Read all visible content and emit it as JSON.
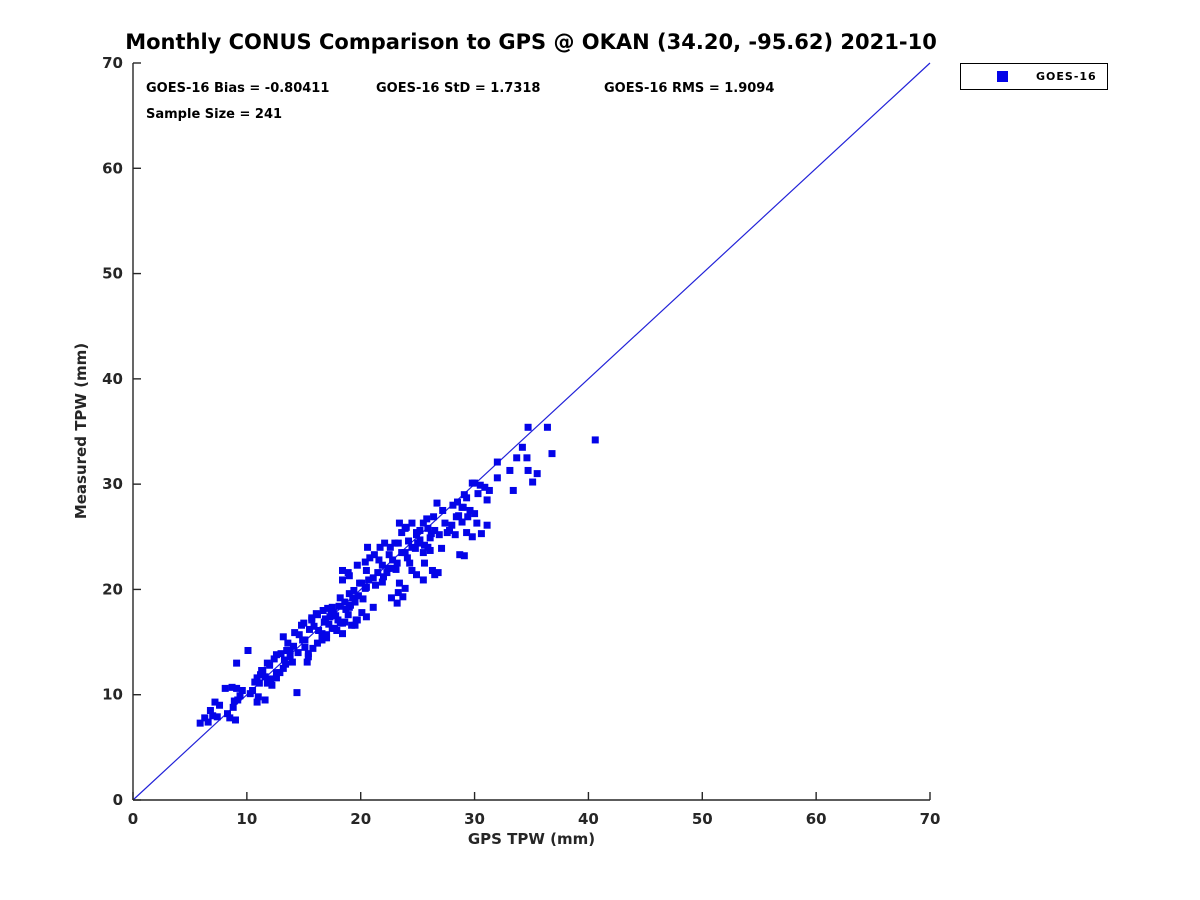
{
  "title": "Monthly CONUS Comparison to GPS @ OKAN (34.20, -95.62) 2021-10",
  "stats": {
    "bias": "GOES-16 Bias = -0.80411",
    "std": "GOES-16 StD = 1.7318",
    "rms": "GOES-16 RMS = 1.9094",
    "sample": "Sample Size = 241"
  },
  "legend": {
    "label": "GOES-16",
    "marker_color": "#0404e8"
  },
  "colors": {
    "marker": "#0404e8",
    "identity_line": "#2222d8",
    "axis": "#262626",
    "tick_label": "#262626",
    "text": "#000000"
  },
  "chart_data": {
    "type": "scatter",
    "title": "Monthly CONUS Comparison to GPS @ OKAN (34.20, -95.62) 2021-10",
    "xlabel": "GPS TPW (mm)",
    "ylabel": "Measured TPW (mm)",
    "xlim": [
      0,
      70
    ],
    "ylim": [
      0,
      70
    ],
    "xticks": [
      0,
      10,
      20,
      30,
      40,
      50,
      60,
      70
    ],
    "yticks": [
      0,
      10,
      20,
      30,
      40,
      50,
      60,
      70
    ],
    "grid": false,
    "legend_position": "outside-top-right",
    "reference_line": {
      "type": "identity",
      "from": [
        0,
        0
      ],
      "to": [
        70,
        70
      ]
    },
    "stats": {
      "bias": -0.80411,
      "std": 1.7318,
      "rms": 1.9094,
      "sample_size": 241
    },
    "series": [
      {
        "name": "GOES-16",
        "marker": "square",
        "marker_size_px": 7,
        "color": "#0404e8",
        "points": [
          [
            5.9,
            7.3
          ],
          [
            6.3,
            7.8
          ],
          [
            6.6,
            7.4
          ],
          [
            6.8,
            8.5
          ],
          [
            7.0,
            8.0
          ],
          [
            7.2,
            9.3
          ],
          [
            7.6,
            9.0
          ],
          [
            8.1,
            10.6
          ],
          [
            8.3,
            8.2
          ],
          [
            8.5,
            7.8
          ],
          [
            8.7,
            10.7
          ],
          [
            8.8,
            8.8
          ],
          [
            9.0,
            7.6
          ],
          [
            9.1,
            10.6
          ],
          [
            9.2,
            9.5
          ],
          [
            9.6,
            10.4
          ],
          [
            9.1,
            13.0
          ],
          [
            10.1,
            14.2
          ],
          [
            10.3,
            10.1
          ],
          [
            10.5,
            10.4
          ],
          [
            10.9,
            9.3
          ],
          [
            10.9,
            11.6
          ],
          [
            11.0,
            9.8
          ],
          [
            11.1,
            11.1
          ],
          [
            11.3,
            12.3
          ],
          [
            11.4,
            12.3
          ],
          [
            11.6,
            9.5
          ],
          [
            11.6,
            11.7
          ],
          [
            11.8,
            11.1
          ],
          [
            11.8,
            13.0
          ],
          [
            12.0,
            12.8
          ],
          [
            12.1,
            11.5
          ],
          [
            12.2,
            10.9
          ],
          [
            12.6,
            11.6
          ],
          [
            12.6,
            12.1
          ],
          [
            12.6,
            13.8
          ],
          [
            12.9,
            12.1
          ],
          [
            13.2,
            12.5
          ],
          [
            13.2,
            15.5
          ],
          [
            13.3,
            13.3
          ],
          [
            13.5,
            14.2
          ],
          [
            13.6,
            14.9
          ],
          [
            13.8,
            13.6
          ],
          [
            13.8,
            14.2
          ],
          [
            14.0,
            13.1
          ],
          [
            14.2,
            15.9
          ],
          [
            14.4,
            10.2
          ],
          [
            14.6,
            15.7
          ],
          [
            14.8,
            16.6
          ],
          [
            14.9,
            15.2
          ],
          [
            15.1,
            14.5
          ],
          [
            15.1,
            15.2
          ],
          [
            15.3,
            13.1
          ],
          [
            15.4,
            13.6
          ],
          [
            15.4,
            13.9
          ],
          [
            15.7,
            17.1
          ],
          [
            15.7,
            17.3
          ],
          [
            15.8,
            14.4
          ],
          [
            16.1,
            17.7
          ],
          [
            16.2,
            14.9
          ],
          [
            16.2,
            17.6
          ],
          [
            16.6,
            15.2
          ],
          [
            16.6,
            15.8
          ],
          [
            16.7,
            18.0
          ],
          [
            16.8,
            16.9
          ],
          [
            17.0,
            15.4
          ],
          [
            17.0,
            15.7
          ],
          [
            17.1,
            18.2
          ],
          [
            17.3,
            17.4
          ],
          [
            17.5,
            16.3
          ],
          [
            17.5,
            18.3
          ],
          [
            17.6,
            17.8
          ],
          [
            17.7,
            16.3
          ],
          [
            17.9,
            16.1
          ],
          [
            18.0,
            17.1
          ],
          [
            18.2,
            16.8
          ],
          [
            18.2,
            19.2
          ],
          [
            18.4,
            15.8
          ],
          [
            18.4,
            16.8
          ],
          [
            18.4,
            20.9
          ],
          [
            18.4,
            21.8
          ],
          [
            18.6,
            16.9
          ],
          [
            18.6,
            18.8
          ],
          [
            18.9,
            17.6
          ],
          [
            18.9,
            21.6
          ],
          [
            19.0,
            18.3
          ],
          [
            19.0,
            19.6
          ],
          [
            19.0,
            21.3
          ],
          [
            19.2,
            16.6
          ],
          [
            19.3,
            19.2
          ],
          [
            19.5,
            16.6
          ],
          [
            19.5,
            18.8
          ],
          [
            19.6,
            17.1
          ],
          [
            19.7,
            17.1
          ],
          [
            19.7,
            22.3
          ],
          [
            19.9,
            20.6
          ],
          [
            20.1,
            17.8
          ],
          [
            20.1,
            20.6
          ],
          [
            20.4,
            20.1
          ],
          [
            20.4,
            22.6
          ],
          [
            20.5,
            17.4
          ],
          [
            20.5,
            20.2
          ],
          [
            20.5,
            21.8
          ],
          [
            20.6,
            24.0
          ],
          [
            20.8,
            23.0
          ],
          [
            21.1,
            18.3
          ],
          [
            21.1,
            21.1
          ],
          [
            21.2,
            23.3
          ],
          [
            21.5,
            21.6
          ],
          [
            21.7,
            24.0
          ],
          [
            21.9,
            20.7
          ],
          [
            21.9,
            22.3
          ],
          [
            22.1,
            24.4
          ],
          [
            22.3,
            21.6
          ],
          [
            22.4,
            22.0
          ],
          [
            22.6,
            24.0
          ],
          [
            22.7,
            19.2
          ],
          [
            22.7,
            22.0
          ],
          [
            22.8,
            22.8
          ],
          [
            23.0,
            24.4
          ],
          [
            23.2,
            18.7
          ],
          [
            23.2,
            22.5
          ],
          [
            23.3,
            19.7
          ],
          [
            23.3,
            24.4
          ],
          [
            23.4,
            20.6
          ],
          [
            23.4,
            26.3
          ],
          [
            23.6,
            23.5
          ],
          [
            23.6,
            25.4
          ],
          [
            23.7,
            19.3
          ],
          [
            23.9,
            20.1
          ],
          [
            23.9,
            23.5
          ],
          [
            23.9,
            25.8
          ],
          [
            24.0,
            25.9
          ],
          [
            24.1,
            23.0
          ],
          [
            24.3,
            22.5
          ],
          [
            24.5,
            21.8
          ],
          [
            24.5,
            24.0
          ],
          [
            24.5,
            26.3
          ],
          [
            24.8,
            23.9
          ],
          [
            24.9,
            21.4
          ],
          [
            24.9,
            25.2
          ],
          [
            24.9,
            25.4
          ],
          [
            25.2,
            24.7
          ],
          [
            25.2,
            25.6
          ],
          [
            25.5,
            20.9
          ],
          [
            25.5,
            23.5
          ],
          [
            25.5,
            26.3
          ],
          [
            25.6,
            22.5
          ],
          [
            25.6,
            24.2
          ],
          [
            25.9,
            24.0
          ],
          [
            25.9,
            25.8
          ],
          [
            26.1,
            23.7
          ],
          [
            26.1,
            24.9
          ],
          [
            26.2,
            25.3
          ],
          [
            26.3,
            21.8
          ],
          [
            26.5,
            21.4
          ],
          [
            26.5,
            25.6
          ],
          [
            26.7,
            28.2
          ],
          [
            26.8,
            21.6
          ],
          [
            26.9,
            25.2
          ],
          [
            27.1,
            23.9
          ],
          [
            27.4,
            26.3
          ],
          [
            27.6,
            25.4
          ],
          [
            27.8,
            25.6
          ],
          [
            28.0,
            26.1
          ],
          [
            28.1,
            28.0
          ],
          [
            28.3,
            25.2
          ],
          [
            28.4,
            26.9
          ],
          [
            28.5,
            28.3
          ],
          [
            28.7,
            23.3
          ],
          [
            28.9,
            26.4
          ],
          [
            28.9,
            27.8
          ],
          [
            29.0,
            27.8
          ],
          [
            29.1,
            23.2
          ],
          [
            29.1,
            29.0
          ],
          [
            29.3,
            25.4
          ],
          [
            29.3,
            28.7
          ],
          [
            29.4,
            26.9
          ],
          [
            29.6,
            27.5
          ],
          [
            29.8,
            25.0
          ],
          [
            29.8,
            30.1
          ],
          [
            30.0,
            27.2
          ],
          [
            30.0,
            30.1
          ],
          [
            30.2,
            26.3
          ],
          [
            30.3,
            29.1
          ],
          [
            30.5,
            29.9
          ],
          [
            30.6,
            25.3
          ],
          [
            30.9,
            29.7
          ],
          [
            31.1,
            26.1
          ],
          [
            31.1,
            28.5
          ],
          [
            31.3,
            29.4
          ],
          [
            32.0,
            30.6
          ],
          [
            32.0,
            32.1
          ],
          [
            33.1,
            31.3
          ],
          [
            33.4,
            29.4
          ],
          [
            33.7,
            32.5
          ],
          [
            34.2,
            33.5
          ],
          [
            34.6,
            32.5
          ],
          [
            34.7,
            31.3
          ],
          [
            34.7,
            35.4
          ],
          [
            35.1,
            30.2
          ],
          [
            35.5,
            31.0
          ],
          [
            36.4,
            35.4
          ],
          [
            36.8,
            32.9
          ],
          [
            40.6,
            34.2
          ],
          [
            15.5,
            16.2
          ],
          [
            15.9,
            16.5
          ],
          [
            16.3,
            16.1
          ],
          [
            16.9,
            17.2
          ],
          [
            17.2,
            16.7
          ],
          [
            17.4,
            17.9
          ],
          [
            17.8,
            17.5
          ],
          [
            18.1,
            18.4
          ],
          [
            18.7,
            18.1
          ],
          [
            19.1,
            18.5
          ],
          [
            19.4,
            19.9
          ],
          [
            19.8,
            19.4
          ],
          [
            20.2,
            19.1
          ],
          [
            20.7,
            20.9
          ],
          [
            21.3,
            20.4
          ],
          [
            21.6,
            22.8
          ],
          [
            22.0,
            21.2
          ],
          [
            22.5,
            23.3
          ],
          [
            23.1,
            21.9
          ],
          [
            24.2,
            24.6
          ],
          [
            25.0,
            24.4
          ],
          [
            25.8,
            26.7
          ],
          [
            26.4,
            26.9
          ],
          [
            27.2,
            27.5
          ],
          [
            28.6,
            27.0
          ],
          [
            13.0,
            13.9
          ],
          [
            13.4,
            12.9
          ],
          [
            14.1,
            14.6
          ],
          [
            14.5,
            14.0
          ],
          [
            15.0,
            16.8
          ],
          [
            12.4,
            13.4
          ],
          [
            11.2,
            11.9
          ],
          [
            10.7,
            11.2
          ],
          [
            9.4,
            9.9
          ],
          [
            8.9,
            9.4
          ],
          [
            7.4,
            7.9
          ]
        ]
      }
    ]
  }
}
